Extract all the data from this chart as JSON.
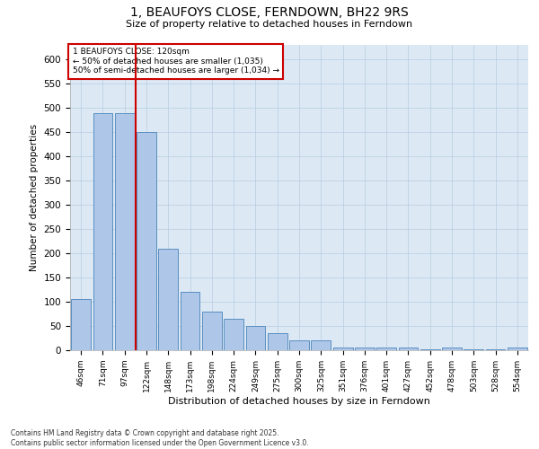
{
  "title": "1, BEAUFOYS CLOSE, FERNDOWN, BH22 9RS",
  "subtitle": "Size of property relative to detached houses in Ferndown",
  "xlabel": "Distribution of detached houses by size in Ferndown",
  "ylabel": "Number of detached properties",
  "categories": [
    "46sqm",
    "71sqm",
    "97sqm",
    "122sqm",
    "148sqm",
    "173sqm",
    "198sqm",
    "224sqm",
    "249sqm",
    "275sqm",
    "300sqm",
    "325sqm",
    "351sqm",
    "376sqm",
    "401sqm",
    "427sqm",
    "452sqm",
    "478sqm",
    "503sqm",
    "528sqm",
    "554sqm"
  ],
  "values": [
    105,
    490,
    490,
    450,
    210,
    120,
    80,
    65,
    50,
    35,
    20,
    20,
    6,
    6,
    5,
    5,
    1,
    5,
    1,
    1,
    5
  ],
  "bar_color": "#aec6e8",
  "bar_edge_color": "#5a8fc0",
  "background_color": "#dce9f5",
  "red_line_index": 2.5,
  "annotation_text": "1 BEAUFOYS CLOSE: 120sqm\n← 50% of detached houses are smaller (1,035)\n50% of semi-detached houses are larger (1,034) →",
  "annotation_box_color": "#ffffff",
  "annotation_box_edge": "#cc0000",
  "footnote": "Contains HM Land Registry data © Crown copyright and database right 2025.\nContains public sector information licensed under the Open Government Licence v3.0.",
  "ylim": [
    0,
    630
  ],
  "yticks": [
    0,
    50,
    100,
    150,
    200,
    250,
    300,
    350,
    400,
    450,
    500,
    550,
    600
  ]
}
